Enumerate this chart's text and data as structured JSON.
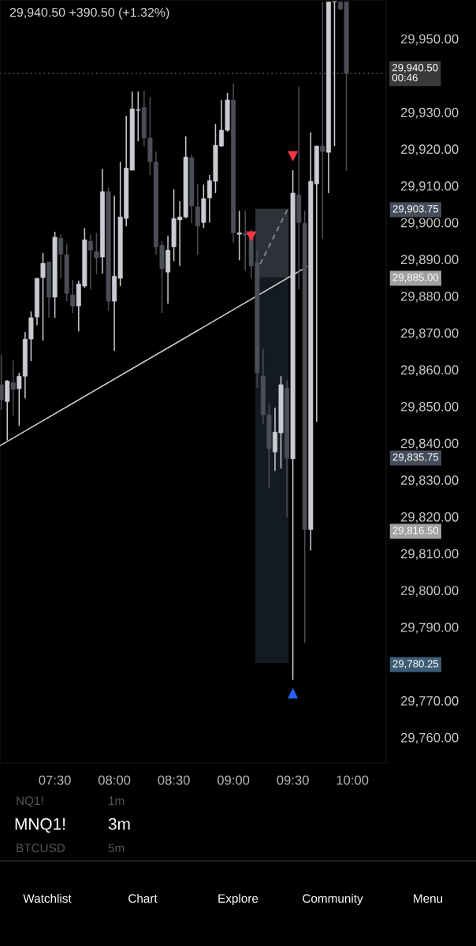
{
  "chart_data": {
    "type": "candlestick",
    "title": "29,940.50 +390.50 (+1.32%)",
    "x": [
      7.05,
      7.1,
      7.15,
      7.2,
      7.25,
      7.3,
      7.35,
      7.4,
      7.45,
      7.5,
      7.55,
      7.6,
      7.65,
      7.7,
      7.75,
      7.8,
      7.85,
      7.9,
      7.95,
      8.0,
      8.05,
      8.1,
      8.15,
      8.2,
      8.25,
      8.3,
      8.35,
      8.4,
      8.45,
      8.5,
      8.55,
      8.6,
      8.65,
      8.7,
      8.75,
      8.8,
      8.85,
      8.9,
      8.95,
      9.0,
      9.05,
      9.1,
      9.15,
      9.2,
      9.25,
      9.3,
      9.35,
      9.4,
      9.45,
      9.5,
      9.55,
      9.6,
      9.65,
      9.7,
      9.75,
      9.8,
      9.85,
      9.9,
      9.95
    ],
    "ohlc": [
      [
        29855.9,
        29864.0,
        29849.0,
        29851.8
      ],
      [
        29851.3,
        29857.1,
        29840.8,
        29856.9
      ],
      [
        29856.5,
        29862.5,
        29847.5,
        29854.6
      ],
      [
        29854.8,
        29859.1,
        29844.7,
        29858.2
      ],
      [
        29858.2,
        29870.2,
        29852.2,
        29868.3
      ],
      [
        29868.3,
        29875.8,
        29862.3,
        29874.1
      ],
      [
        29874.3,
        29885.0,
        29872.1,
        29884.8
      ],
      [
        29885.0,
        29891.7,
        29867.9,
        29888.9
      ],
      [
        29889.3,
        29889.3,
        29874.1,
        29879.7
      ],
      [
        29879.7,
        29897.5,
        29874.1,
        29896.0
      ],
      [
        29895.7,
        29896.8,
        29884.8,
        29891.4
      ],
      [
        29891.2,
        29894.2,
        29878.6,
        29880.7
      ],
      [
        29880.3,
        29884.4,
        29875.4,
        29877.3
      ],
      [
        29877.3,
        29884.2,
        29870.4,
        29883.3
      ],
      [
        29882.7,
        29898.5,
        29882.2,
        29895.3
      ],
      [
        29894.9,
        29896.8,
        29881.8,
        29892.5
      ],
      [
        29892.1,
        29897.2,
        29885.9,
        29890.4
      ],
      [
        29890.6,
        29914.6,
        29886.1,
        29908.4
      ],
      [
        29908.4,
        29909.5,
        29876.0,
        29878.6
      ],
      [
        29878.6,
        29907.3,
        29865.1,
        29885.4
      ],
      [
        29884.8,
        29916.5,
        29882.7,
        29901.5
      ],
      [
        29901.1,
        29929.0,
        29899.0,
        29914.8
      ],
      [
        29914.2,
        29935.6,
        29914.2,
        29930.9
      ],
      [
        29930.5,
        29935.6,
        29922.1,
        29930.7
      ],
      [
        29931.3,
        29935.8,
        29920.8,
        29923.0
      ],
      [
        29923.0,
        29934.1,
        29912.9,
        29916.5
      ],
      [
        29916.5,
        29919.3,
        29891.2,
        29893.4
      ],
      [
        29893.8,
        29894.9,
        29875.4,
        29887.4
      ],
      [
        29886.5,
        29896.4,
        29877.9,
        29892.5
      ],
      [
        29893.4,
        29909.0,
        29889.5,
        29901.1
      ],
      [
        29900.7,
        29905.8,
        29888.2,
        29901.5
      ],
      [
        29901.5,
        29923.4,
        29901.1,
        29917.8
      ],
      [
        29917.6,
        29918.5,
        29899.8,
        29904.5
      ],
      [
        29904.3,
        29910.5,
        29891.2,
        29899.0
      ],
      [
        29900.0,
        29910.3,
        29898.5,
        29906.5
      ],
      [
        29906.7,
        29912.9,
        29900.0,
        29911.4
      ],
      [
        29911.2,
        29926.8,
        29908.0,
        29921.0
      ],
      [
        29920.8,
        29933.3,
        29920.6,
        29925.1
      ],
      [
        29925.1,
        29935.2,
        29924.7,
        29933.3
      ],
      [
        29933.3,
        29937.8,
        29894.4,
        29897.2
      ],
      [
        29896.8,
        29903.2,
        29889.7,
        29897.2
      ],
      [
        29897.0,
        29903.2,
        29886.9,
        29896.6
      ],
      [
        29896.6,
        29898.1,
        29884.8,
        29888.2
      ],
      [
        29889.1,
        29892.5,
        29855.0,
        29859.1
      ],
      [
        29858.2,
        29865.7,
        29845.1,
        29847.7
      ],
      [
        29847.7,
        29850.7,
        29827.8,
        29838.5
      ],
      [
        29837.6,
        29849.6,
        29832.5,
        29843.0
      ],
      [
        29842.8,
        29858.2,
        29833.1,
        29855.9
      ],
      [
        29855.0,
        29857.1,
        29819.8,
        29835.9
      ],
      [
        29835.75,
        29914.2,
        29775.6,
        29908.0
      ],
      [
        29907.5,
        29936.9,
        29881.8,
        29900.0
      ],
      [
        29899.8,
        29903.2,
        29785.7,
        29816.5
      ],
      [
        29816.5,
        29924.5,
        29810.8,
        29911.2
      ],
      [
        29910.5,
        29920.8,
        29845.8,
        29920.8
      ],
      [
        29920.8,
        29960.0,
        29895.5,
        29919.3
      ],
      [
        29919.1,
        29960.0,
        29908.0,
        29960.0
      ],
      [
        29960.0,
        29960.0,
        29920.8,
        29960.0
      ],
      [
        29960.0,
        29960.0,
        29957.7,
        29958.0
      ],
      [
        29960.0,
        29960.0,
        29914.0,
        29940.5
      ]
    ],
    "colors": [
      "#4c4e57",
      "#c9cbd1",
      "#4c4e57",
      "#c9cbd1",
      "#c9cbd1",
      "#c9cbd1",
      "#c9cbd1",
      "#c9cbd1",
      "#4c4e57",
      "#c9cbd1",
      "#4c4e57",
      "#4c4e57",
      "#4c4e57",
      "#c9cbd1",
      "#c9cbd1",
      "#4c4e57",
      "#4c4e57",
      "#c9cbd1",
      "#4c4e57",
      "#c9cbd1",
      "#c9cbd1",
      "#c9cbd1",
      "#c9cbd1",
      "#c9cbd1",
      "#4c4e57",
      "#4c4e57",
      "#4c4e57",
      "#4c4e57",
      "#c9cbd1",
      "#c9cbd1",
      "#c9cbd1",
      "#c9cbd1",
      "#4c4e57",
      "#4c4e57",
      "#c9cbd1",
      "#c9cbd1",
      "#c9cbd1",
      "#c9cbd1",
      "#c9cbd1",
      "#4c4e57",
      "#c9cbd1",
      "#4c4e57",
      "#4c4e57",
      "#4c4e57",
      "#4c4e57",
      "#4c4e57",
      "#c9cbd1",
      "#c9cbd1",
      "#4c4e57",
      "#c9cbd1",
      "#4c4e57",
      "#4c4e57",
      "#c9cbd1",
      "#c9cbd1",
      "#4c4e57",
      "#c9cbd1",
      "#c9cbd1",
      "#4c4e57",
      "#4c4e57"
    ],
    "series": [
      {
        "type": "line",
        "color": "#c8c8c8",
        "line_style": "solid",
        "x": [
          7.039,
          9.62
        ],
        "values": [
          29839.3,
          29888.0
        ]
      },
      {
        "type": "line",
        "color": "#8a8f98",
        "line_style": "dashed",
        "x": [
          9.225,
          9.455
        ],
        "values": [
          29888.7,
          29903.5
        ]
      },
      {
        "type": "scatter",
        "color": "#f23645",
        "marker": "triangle",
        "x": [
          9.15,
          9.5
        ],
        "values": [
          29896.2,
          29918.0
        ]
      },
      {
        "type": "scatter",
        "color": "#2962ff",
        "marker": "triangle",
        "x": [
          9.5
        ],
        "values": [
          29772.0
        ]
      },
      {
        "type": "bar",
        "color": "#2e3137",
        "x": [
          9.325
        ],
        "values": [
          18.75
        ],
        "base": [
          29885.0
        ]
      },
      {
        "type": "bar",
        "color": "#141a21",
        "x": [
          9.325
        ],
        "values": [
          104.75
        ],
        "base": [
          29780.25
        ]
      }
    ],
    "ref_lines": [
      {
        "axis": "y",
        "value": 29940.5,
        "label": "29,940.50\n00:46",
        "color": "#6a6a6a",
        "line_style": "dotted"
      }
    ],
    "xlim": [
      7.039,
      10.284
    ],
    "xticks": [
      {
        "value": 7.5,
        "label": "07:30"
      },
      {
        "value": 8.0,
        "label": "08:00"
      },
      {
        "value": 8.5,
        "label": "08:30"
      },
      {
        "value": 9.0,
        "label": "09:00"
      },
      {
        "value": 9.5,
        "label": "09:30"
      },
      {
        "value": 10.0,
        "label": "10:00"
      }
    ],
    "ylim": [
      29753.0,
      29960.5
    ],
    "yticks": [
      {
        "value": 29760,
        "label": "29,760.00"
      },
      {
        "value": 29770,
        "label": "29,770.00"
      },
      {
        "value": 29790,
        "label": "29,790.00"
      },
      {
        "value": 29800,
        "label": "29,800.00"
      },
      {
        "value": 29810,
        "label": "29,810.00"
      },
      {
        "value": 29820,
        "label": "29,820.00"
      },
      {
        "value": 29830,
        "label": "29,830.00"
      },
      {
        "value": 29840,
        "label": "29,840.00"
      },
      {
        "value": 29850,
        "label": "29,850.00"
      },
      {
        "value": 29860,
        "label": "29,860.00"
      },
      {
        "value": 29870,
        "label": "29,870.00"
      },
      {
        "value": 29880,
        "label": "29,880.00"
      },
      {
        "value": 29890,
        "label": "29,890.00"
      },
      {
        "value": 29900,
        "label": "29,900.00"
      },
      {
        "value": 29910,
        "label": "29,910.00"
      },
      {
        "value": 29920,
        "label": "29,920.00"
      },
      {
        "value": 29930,
        "label": "29,930.00"
      },
      {
        "value": 29950,
        "label": "29,950.00"
      }
    ],
    "grid": false,
    "annotations": [
      "29,903.75",
      "29,885.00",
      "29,835.75",
      "29,816.50",
      "29,780.25",
      "NQ1!",
      "1m",
      "MNQ1!",
      "3m",
      "BTCUSD",
      "5m",
      "Watchlist",
      "Chart",
      "Explore",
      "Community",
      "Menu"
    ]
  }
}
